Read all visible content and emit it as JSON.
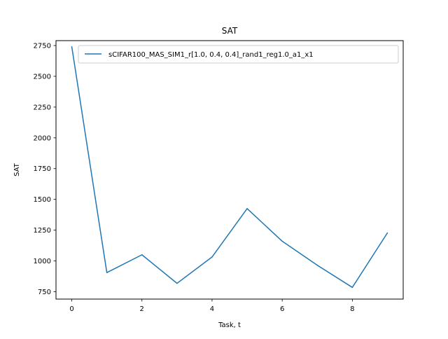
{
  "chart_data": {
    "type": "line",
    "title": "SAT",
    "xlabel": "Task, t",
    "ylabel": "SAT",
    "xlim": [
      -0.45,
      9.45
    ],
    "ylim": [
      690,
      2790
    ],
    "x_ticks": [
      0,
      2,
      4,
      6,
      8
    ],
    "y_ticks": [
      750,
      1000,
      1250,
      1500,
      1750,
      2000,
      2250,
      2500,
      2750
    ],
    "grid": false,
    "legend_position": "top-right",
    "series": [
      {
        "name": "sCIFAR100_MAS_SIM1_r[1.0, 0.4, 0.4]_rand1_reg1.0_a1_x1",
        "color": "#1f77b4",
        "x": [
          0,
          1,
          2,
          3,
          4,
          5,
          6,
          7,
          8,
          9
        ],
        "y": [
          2740,
          905,
          1050,
          818,
          1032,
          1425,
          1160,
          965,
          785,
          1228
        ]
      }
    ]
  }
}
